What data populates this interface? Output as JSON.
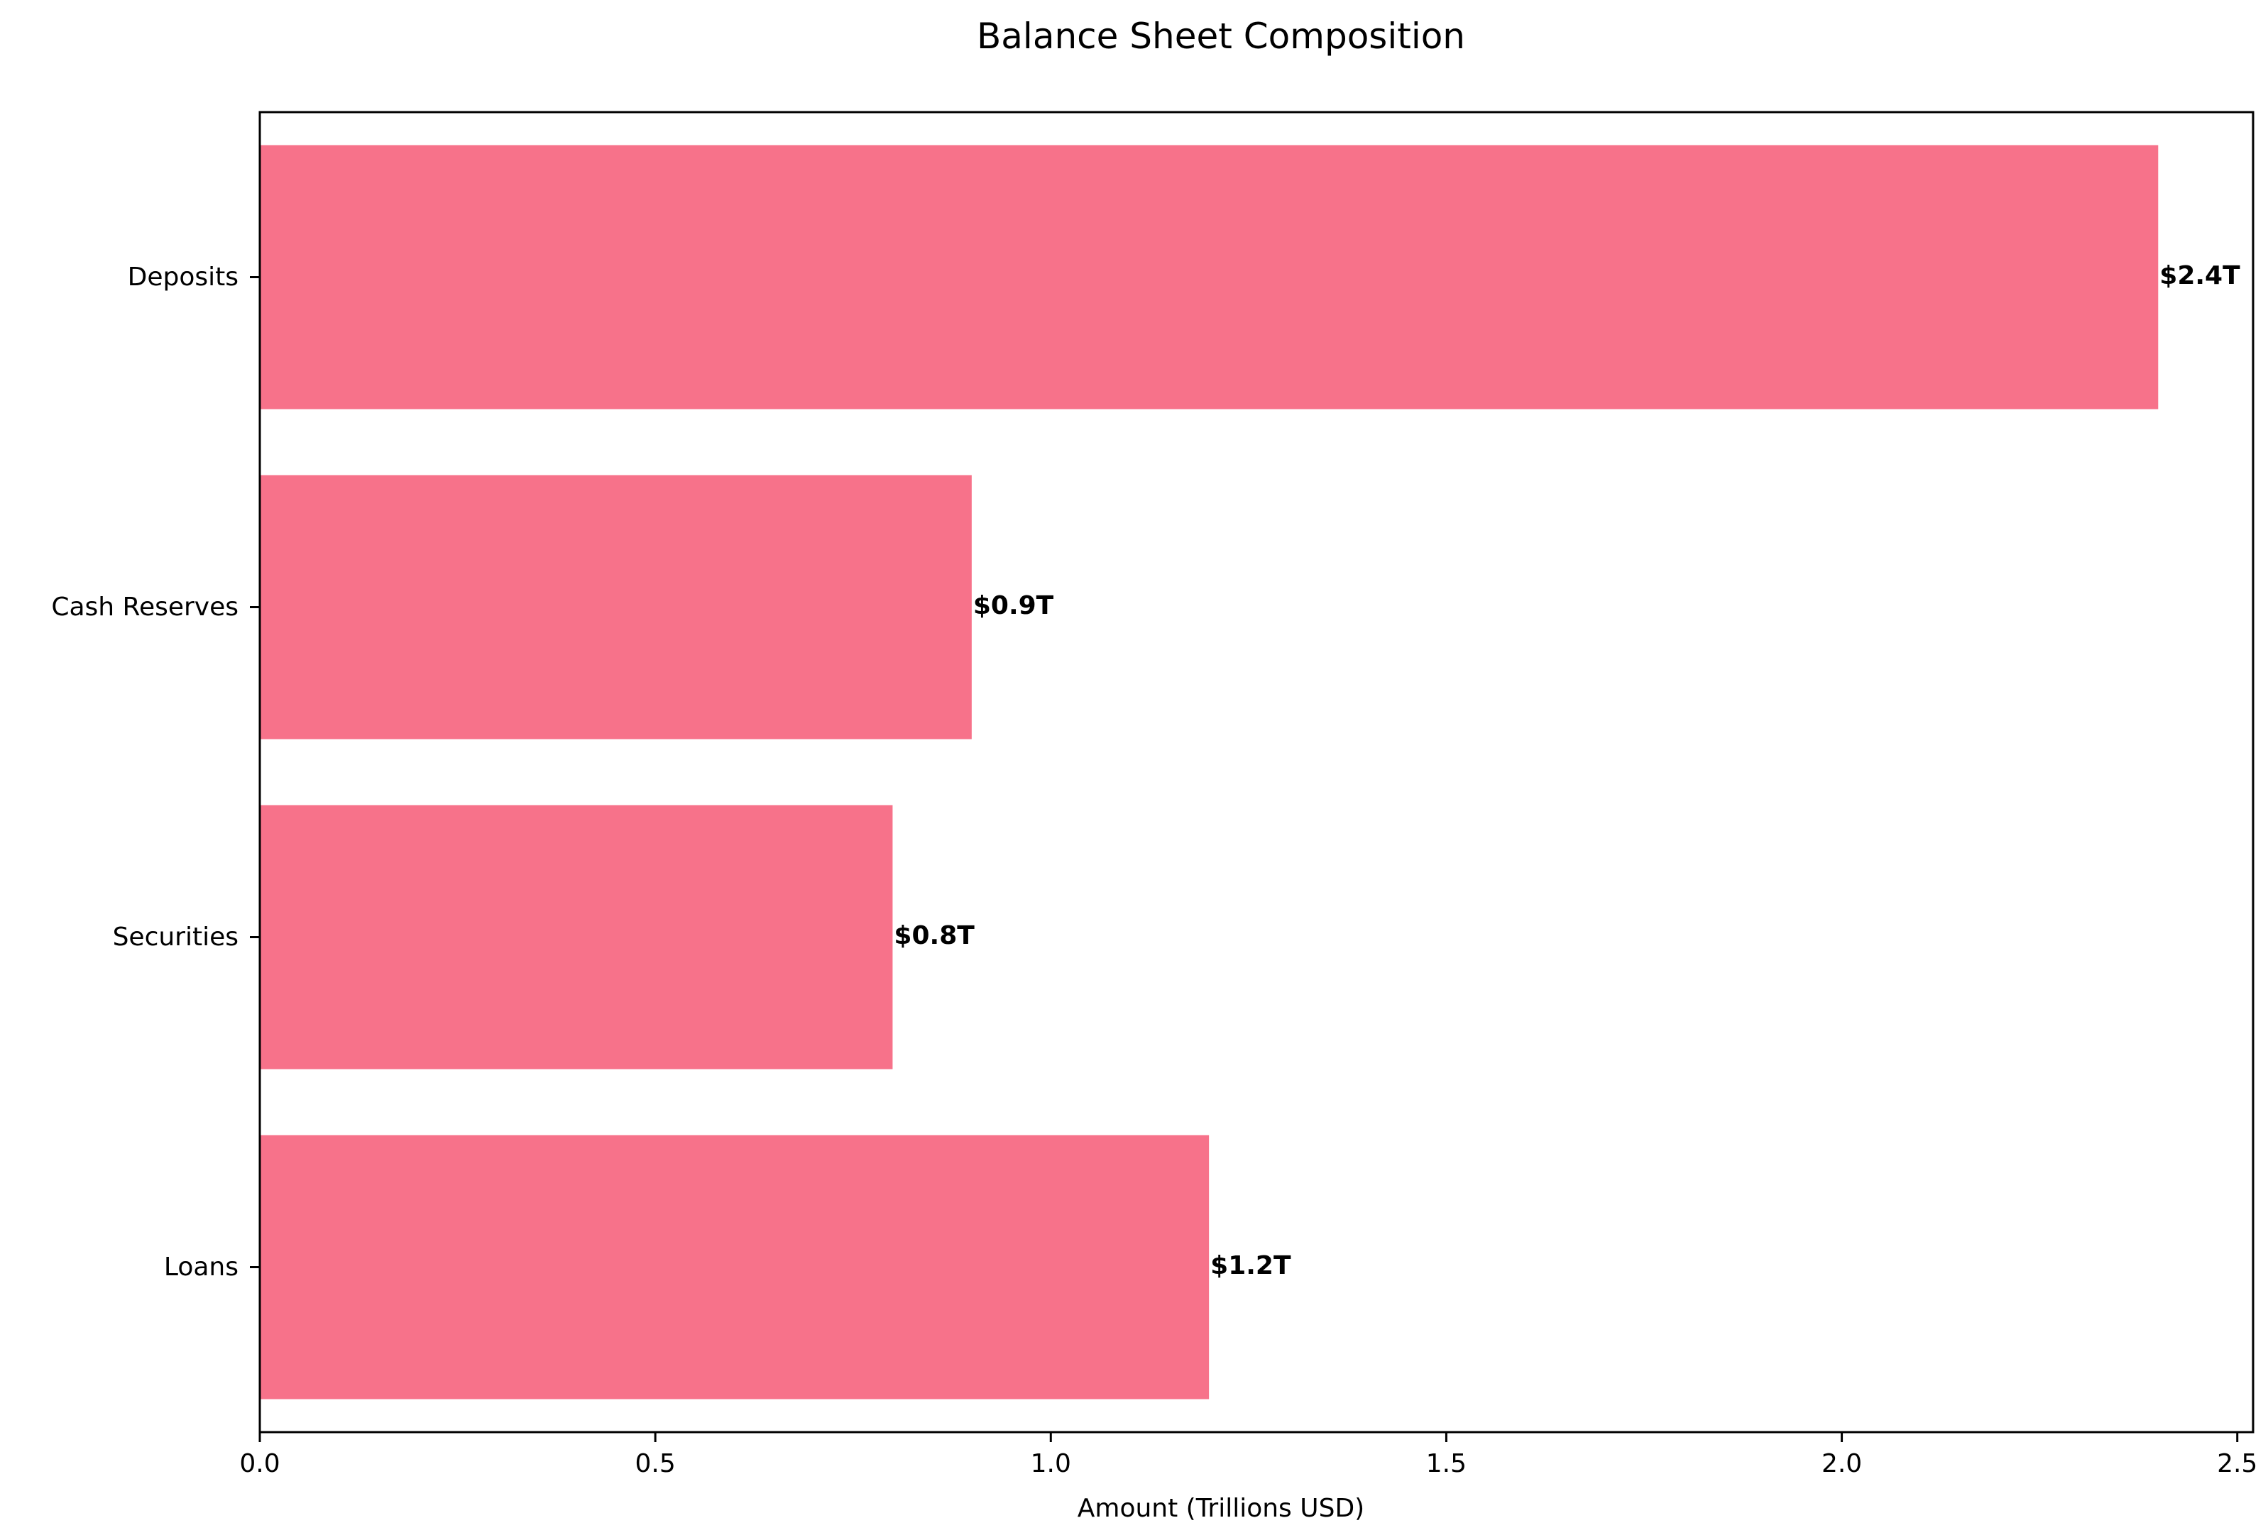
{
  "chart_data": {
    "type": "bar",
    "orientation": "horizontal",
    "title": "Balance Sheet Composition",
    "xlabel": "Amount (Trillions USD)",
    "ylabel": "",
    "categories": [
      "Loans",
      "Securities",
      "Cash Reserves",
      "Deposits"
    ],
    "values": [
      1.2,
      0.8,
      0.9,
      2.4
    ],
    "data_labels": [
      "$1.2T",
      "$0.8T",
      "$0.9T",
      "$2.4T"
    ],
    "xlim": [
      0,
      2.52
    ],
    "xticks": [
      0.0,
      0.5,
      1.0,
      1.5,
      2.0,
      2.5
    ],
    "xtick_labels": [
      "0.0",
      "0.5",
      "1.0",
      "1.5",
      "2.0",
      "2.5"
    ],
    "bar_color": "#f7728a",
    "grid": false,
    "legend": "none"
  }
}
